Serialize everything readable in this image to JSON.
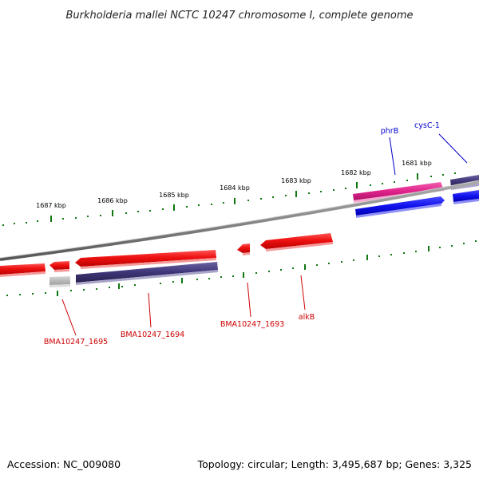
{
  "title": "Burkholderia mallei NCTC 10247 chromosome I, complete genome",
  "footer": {
    "accession": "Accession: NC_009080",
    "summary": "Topology: circular; Length: 3,495,687 bp; Genes: 3,325"
  },
  "ticks": [
    {
      "label": "1687 kbp"
    },
    {
      "label": "1686 kbp"
    },
    {
      "label": "1685 kbp"
    },
    {
      "label": "1684 kbp"
    },
    {
      "label": "1683 kbp"
    },
    {
      "label": "1682 kbp"
    },
    {
      "label": "1681 kbp"
    }
  ],
  "gene_labels": [
    {
      "text": "phrB",
      "color": "#0000cc"
    },
    {
      "text": "cysC-1",
      "color": "#0000cc"
    },
    {
      "text": "BMA10247_1695",
      "color": "#cc0000"
    },
    {
      "text": "BMA10247_1694",
      "color": "#cc0000"
    },
    {
      "text": "BMA10247_1693",
      "color": "#cc0000"
    },
    {
      "text": "alkB",
      "color": "#cc0000"
    }
  ],
  "colors": {
    "cds_red": "#ee1111",
    "cds_navy": "#3d3577",
    "cds_magenta": "#e0248c",
    "cds_blue": "#1111ee",
    "cds_gray": "#bbbbbb",
    "backbone": "#888888",
    "tick": "#117711"
  }
}
